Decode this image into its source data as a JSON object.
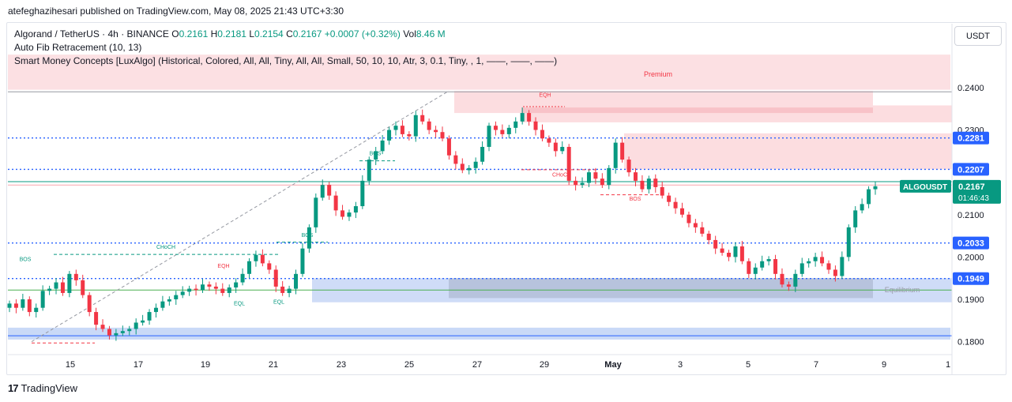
{
  "publisher": "atefeghazihesari published on TradingView.com, May 08, 2025 21:43 UTC+3:30",
  "legend": {
    "symbol": "Algorand / TetherUS · 4h · BINANCE",
    "o_label": "O",
    "o_value": "0.2161",
    "h_label": "H",
    "h_value": "0.2181",
    "l_label": "L",
    "l_value": "0.2154",
    "c_label": "C",
    "c_value": "0.2167",
    "change": "+0.0007 (+0.32%)",
    "vol_label": "Vol",
    "vol_value": "8.46 M",
    "indicator_1": "Auto Fib Retracement (10, 13)",
    "indicator_2": "Smart Money Concepts [LuxAlgo] (Historical, Colored, All, All, Tiny, All, All, Small, 50, 10, 10, Atr, 3, 0.1, Tiny, , 1, ——, ——, ——)"
  },
  "currency_button": "USDT",
  "footer": {
    "logo_mark": "17",
    "logo_text": "TradingView"
  },
  "colors": {
    "up": "#089981",
    "down": "#f23645",
    "blue": "#2962ff",
    "premium_zone": "#fcdde0",
    "supply_block": "#f7b7bd",
    "demand_block": "#bcd0f5",
    "discount_zone": "#cfdcf7"
  },
  "chart_data": {
    "type": "candlestick",
    "y_axis": {
      "range": [
        0.1775,
        0.2495
      ],
      "ticks": [
        "0.2400",
        "0.2300",
        "0.2100",
        "0.2000",
        "0.1900",
        "0.1800"
      ]
    },
    "x_axis": {
      "ticks": [
        "15",
        "17",
        "19",
        "21",
        "23",
        "25",
        "27",
        "29",
        "May",
        "3",
        "5",
        "7",
        "9",
        "1"
      ]
    },
    "price_levels": [
      {
        "label": "0.2281",
        "value": 0.2281
      },
      {
        "label": "0.2207",
        "value": 0.2207
      },
      {
        "label": "0.2033",
        "value": 0.2033
      },
      {
        "label": "0.1949",
        "value": 0.1949
      }
    ],
    "last_price": {
      "symbol": "ALGOUSDT",
      "value": "0.2167",
      "countdown": "01:46:43"
    },
    "zone_labels": {
      "premium": "Premium",
      "equilibrium": "Equilibrium"
    },
    "annotations": {
      "bos": "BOS",
      "choch": "CHoCH",
      "eqh": "EQH",
      "eql": "EQL"
    },
    "close_path": [
      0.189,
      0.188,
      0.19,
      0.187,
      0.188,
      0.192,
      0.1925,
      0.194,
      0.1915,
      0.196,
      0.1945,
      0.191,
      0.187,
      0.184,
      0.183,
      0.1815,
      0.182,
      0.1825,
      0.183,
      0.1845,
      0.185,
      0.187,
      0.188,
      0.1895,
      0.19,
      0.191,
      0.1918,
      0.1925,
      0.1922,
      0.1935,
      0.193,
      0.1925,
      0.1915,
      0.1928,
      0.194,
      0.196,
      0.199,
      0.2005,
      0.1985,
      0.197,
      0.193,
      0.1915,
      0.1925,
      0.196,
      0.202,
      0.207,
      0.214,
      0.217,
      0.2145,
      0.211,
      0.2095,
      0.2105,
      0.212,
      0.218,
      0.223,
      0.225,
      0.2275,
      0.23,
      0.231,
      0.229,
      0.2285,
      0.2335,
      0.232,
      0.23,
      0.2295,
      0.228,
      0.224,
      0.222,
      0.2205,
      0.221,
      0.2225,
      0.226,
      0.231,
      0.23,
      0.229,
      0.2305,
      0.232,
      0.234,
      0.232,
      0.23,
      0.228,
      0.227,
      0.225,
      0.226,
      0.218,
      0.217,
      0.2175,
      0.22,
      0.2185,
      0.217,
      0.221,
      0.227,
      0.223,
      0.22,
      0.218,
      0.216,
      0.2185,
      0.2165,
      0.2145,
      0.213,
      0.2115,
      0.21,
      0.208,
      0.207,
      0.2055,
      0.204,
      0.202,
      0.201,
      0.2,
      0.2025,
      0.199,
      0.196,
      0.1975,
      0.199,
      0.1995,
      0.196,
      0.1935,
      0.193,
      0.196,
      0.1985,
      0.199,
      0.2,
      0.1985,
      0.197,
      0.1955,
      0.2,
      0.207,
      0.211,
      0.2125,
      0.216,
      0.2167
    ]
  }
}
